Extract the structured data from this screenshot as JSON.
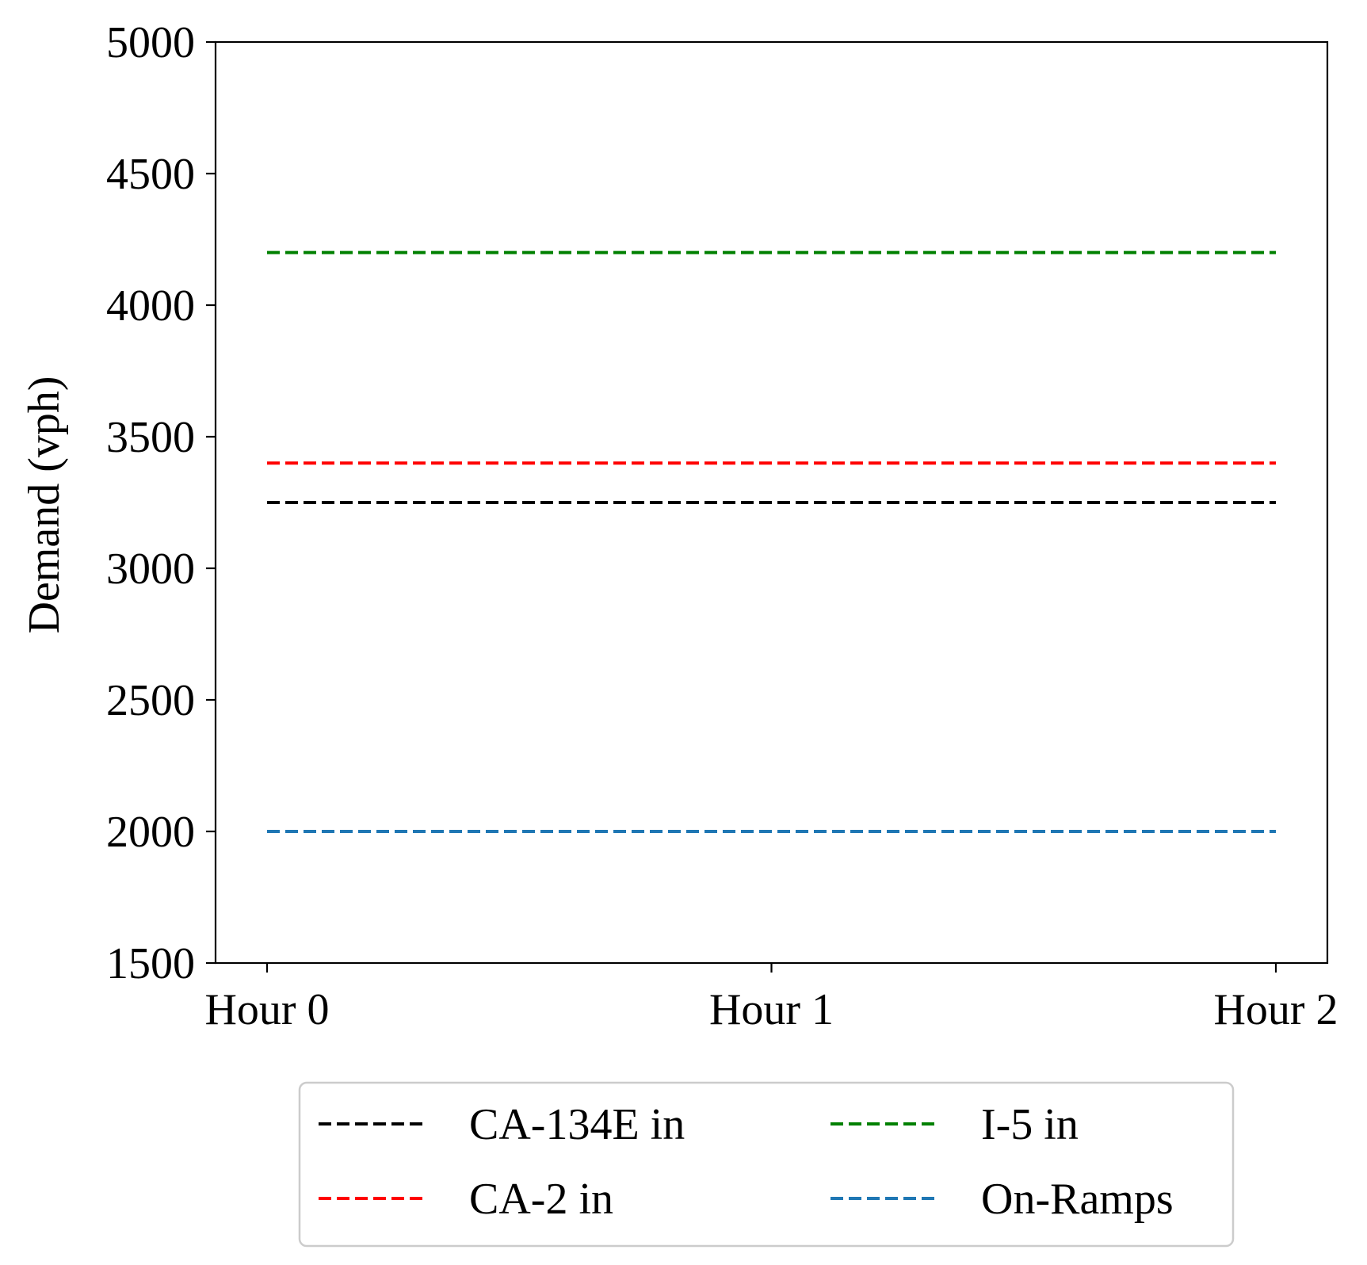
{
  "chart_data": {
    "type": "line",
    "title": "",
    "xlabel": "",
    "ylabel": "Demand (vph)",
    "categories": [
      "Hour 0",
      "Hour 1",
      "Hour 2"
    ],
    "ylim": [
      1500,
      5000
    ],
    "yticks": [
      1500,
      2000,
      2500,
      3000,
      3500,
      4000,
      4500,
      5000
    ],
    "grid": false,
    "legend_position": "bottom-outside",
    "series": [
      {
        "name": "CA-134E in",
        "values": [
          3250,
          3250,
          3250
        ],
        "color": "#000000",
        "dashed": true
      },
      {
        "name": "CA-2 in",
        "values": [
          3400,
          3400,
          3400
        ],
        "color": "#ff0000",
        "dashed": true
      },
      {
        "name": "I-5 in",
        "values": [
          4200,
          4200,
          4200
        ],
        "color": "#008000",
        "dashed": true
      },
      {
        "name": "On-Ramps",
        "values": [
          2000,
          2000,
          2000
        ],
        "color": "#1f77b4",
        "dashed": true
      }
    ]
  }
}
